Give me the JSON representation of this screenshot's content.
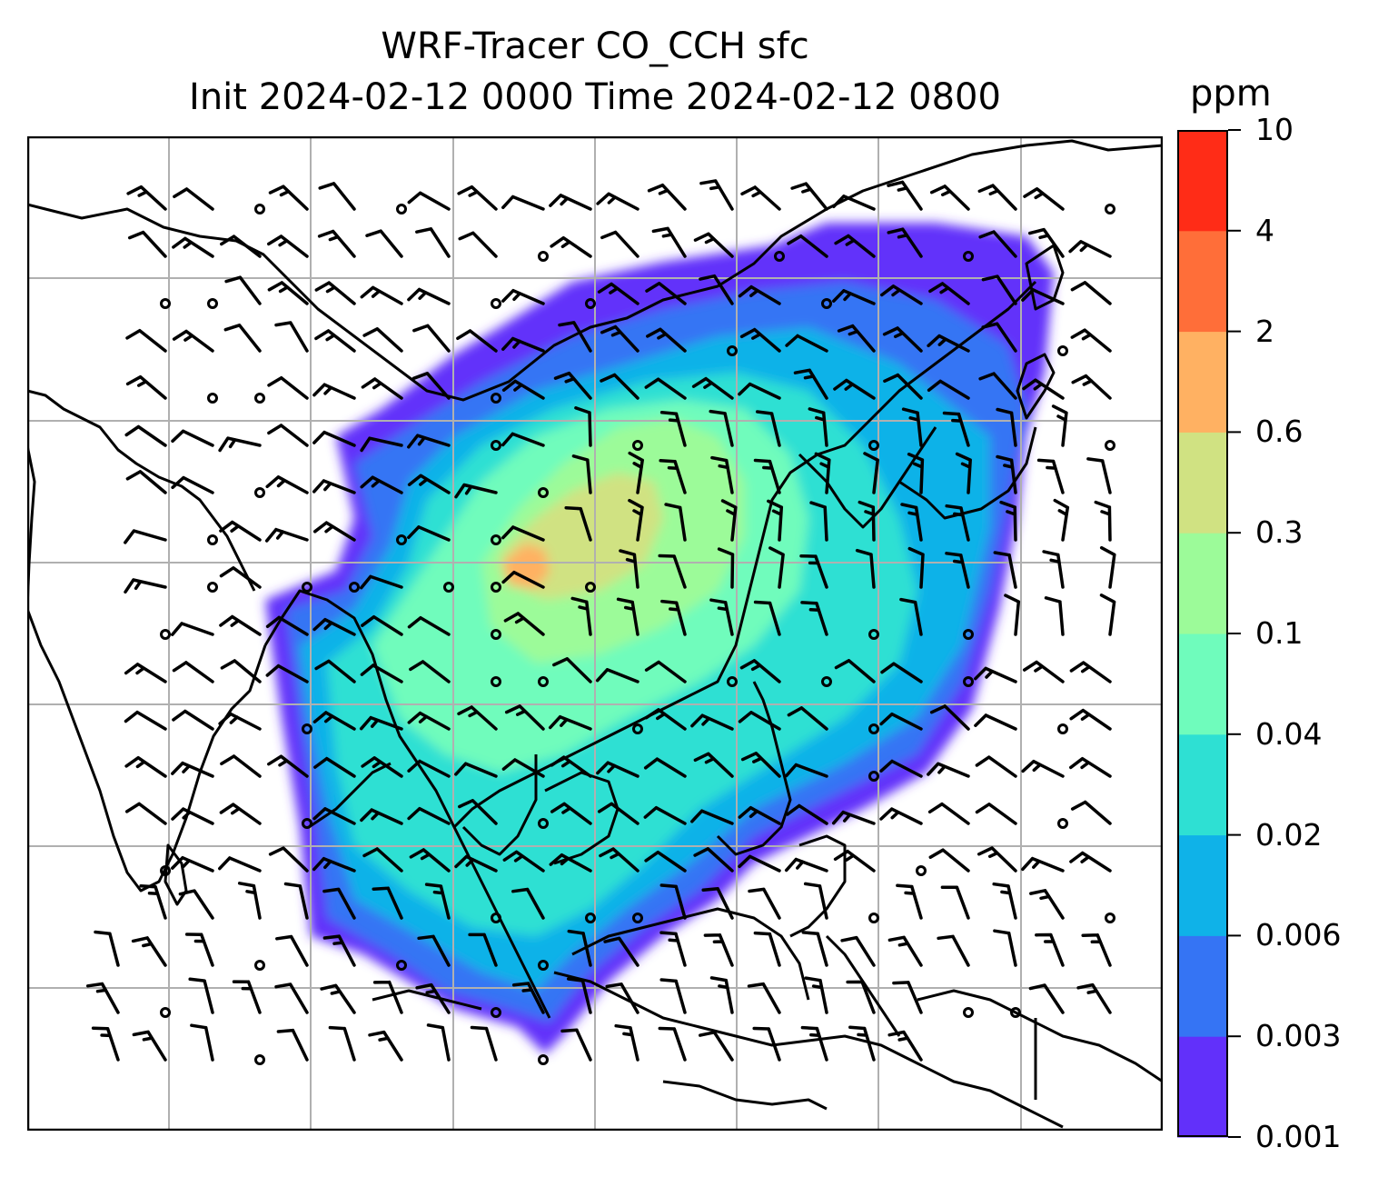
{
  "title": {
    "line1": "WRF-Tracer CO_CCH sfc",
    "line2": "Init 2024-02-12 0000 Time 2024-02-12 0800"
  },
  "colorbar": {
    "unit": "ppm",
    "levels": [
      "0.001",
      "0.003",
      "0.006",
      "0.02",
      "0.04",
      "0.1",
      "0.3",
      "0.6",
      "2",
      "4",
      "10"
    ],
    "colors": [
      "#6230fa",
      "#3574f4",
      "#0fb2e8",
      "#2ee0d3",
      "#6ffcbc",
      "#9cfb99",
      "#d0e282",
      "#ffb162",
      "#ff6e39",
      "#ff2c17"
    ]
  },
  "map": {
    "gridlines": true,
    "coastline_color": "#000000",
    "wind_barb_color": "#000000",
    "grid_color": "#b0b0b0"
  }
}
